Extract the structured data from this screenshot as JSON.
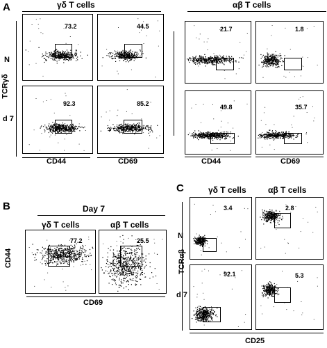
{
  "panelA": {
    "letter": "A",
    "gd_header": "γδ T cells",
    "ab_header": "αβ T cells",
    "row_n": "N",
    "row_d7": "d 7",
    "yaxis": "TCRγδ",
    "x1": "CD44",
    "x2": "CD69",
    "gd_values": [
      "73.2",
      "44.5",
      "92.3",
      "85.2"
    ],
    "ab_values": [
      "21.7",
      "1.8",
      "49.8",
      "35.7"
    ]
  },
  "panelB": {
    "letter": "B",
    "day": "Day 7",
    "gd": "γδ T cells",
    "ab": "αβ T cells",
    "yaxis": "CD44",
    "xaxis": "CD69",
    "values": [
      "77.2",
      "25.5"
    ]
  },
  "panelC": {
    "letter": "C",
    "gd": "γδ T cells",
    "ab": "αβ T cells",
    "row_n": "N",
    "row_d7": "d 7",
    "yaxis": "TCRαβ",
    "xaxis": "CD25",
    "values": [
      "3.4",
      "2.8",
      "92.1",
      "5.3"
    ]
  }
}
